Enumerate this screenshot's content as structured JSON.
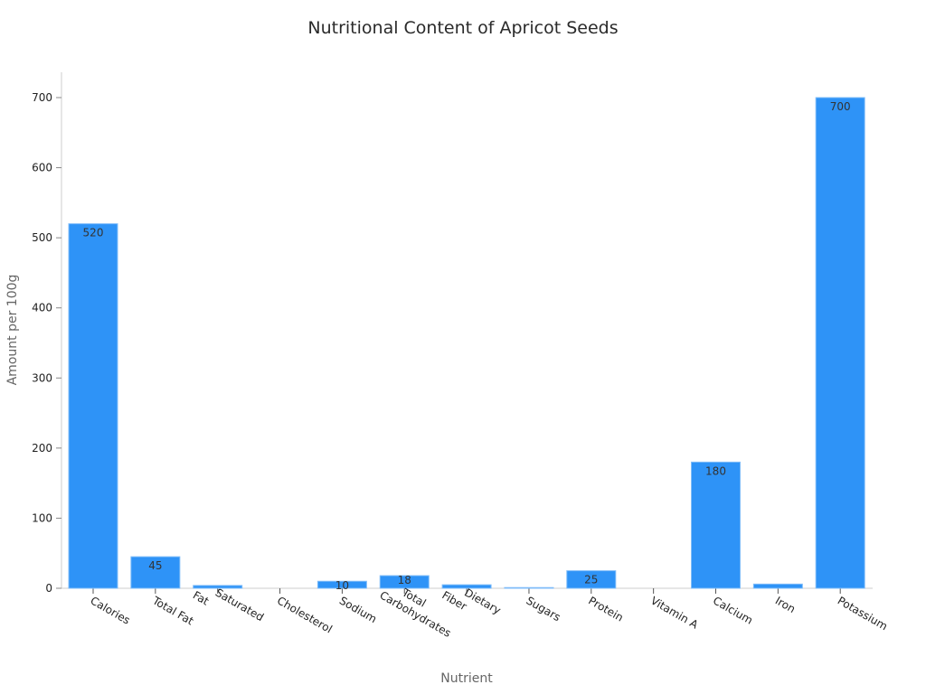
{
  "chart_data": {
    "type": "bar",
    "title": "Nutritional Content of Apricot Seeds",
    "xlabel": "Nutrient",
    "ylabel": "Amount per 100g",
    "categories": [
      "Calories",
      "Total Fat",
      "Saturated Fat",
      "Cholesterol",
      "Sodium",
      "Total Carbohydrates",
      "Dietary Fiber",
      "Sugars",
      "Protein",
      "Vitamin A",
      "Calcium",
      "Iron",
      "Potassium"
    ],
    "category_lines": [
      [
        "Calories"
      ],
      [
        "Total Fat"
      ],
      [
        "Saturated",
        "Fat"
      ],
      [
        "Cholesterol"
      ],
      [
        "Sodium"
      ],
      [
        "Total",
        "Carbohydrates"
      ],
      [
        "Dietary",
        "Fiber"
      ],
      [
        "Sugars"
      ],
      [
        "Protein"
      ],
      [
        "Vitamin A"
      ],
      [
        "Calcium"
      ],
      [
        "Iron"
      ],
      [
        "Potassium"
      ]
    ],
    "values": [
      520,
      45,
      4,
      0,
      10,
      18,
      5,
      1,
      25,
      0,
      180,
      6,
      700
    ],
    "ylim": [
      0,
      735
    ],
    "yticks": [
      0,
      100,
      200,
      300,
      400,
      500,
      600,
      700
    ],
    "grid": false,
    "legend": null,
    "bar_color": "#2e93f7"
  }
}
